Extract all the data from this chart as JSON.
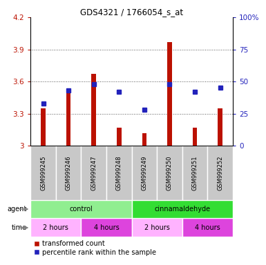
{
  "title": "GDS4321 / 1766054_s_at",
  "samples": [
    "GSM999245",
    "GSM999246",
    "GSM999247",
    "GSM999248",
    "GSM999249",
    "GSM999250",
    "GSM999251",
    "GSM999252"
  ],
  "red_values": [
    3.35,
    3.52,
    3.67,
    3.17,
    3.12,
    3.97,
    3.17,
    3.35
  ],
  "blue_values": [
    33,
    43,
    48,
    42,
    28,
    48,
    42,
    45
  ],
  "ylim_left": [
    3.0,
    4.2
  ],
  "ylim_right": [
    0,
    100
  ],
  "yticks_left": [
    3.0,
    3.3,
    3.6,
    3.9,
    4.2
  ],
  "yticks_right": [
    0,
    25,
    50,
    75,
    100
  ],
  "ytick_labels_left": [
    "3",
    "3.3",
    "3.6",
    "3.9",
    "4.2"
  ],
  "ytick_labels_right": [
    "0",
    "25",
    "50",
    "75",
    "100%"
  ],
  "agent_groups": [
    {
      "label": "control",
      "start": 0,
      "end": 4,
      "color": "#90EE90"
    },
    {
      "label": "cinnamaldehyde",
      "start": 4,
      "end": 8,
      "color": "#33DD33"
    }
  ],
  "time_groups": [
    {
      "label": "2 hours",
      "start": 0,
      "end": 2,
      "color": "#FFB3FF"
    },
    {
      "label": "4 hours",
      "start": 2,
      "end": 4,
      "color": "#DD44DD"
    },
    {
      "label": "2 hours",
      "start": 4,
      "end": 6,
      "color": "#FFB3FF"
    },
    {
      "label": "4 hours",
      "start": 6,
      "end": 8,
      "color": "#DD44DD"
    }
  ],
  "bar_color": "#BB1100",
  "dot_color": "#2222BB",
  "grid_color": "#555555",
  "left_tick_color": "#BB1100",
  "right_tick_color": "#2222BB",
  "sample_bg_color": "#C8C8C8",
  "legend_red_label": "transformed count",
  "legend_blue_label": "percentile rank within the sample",
  "bar_width": 0.18
}
